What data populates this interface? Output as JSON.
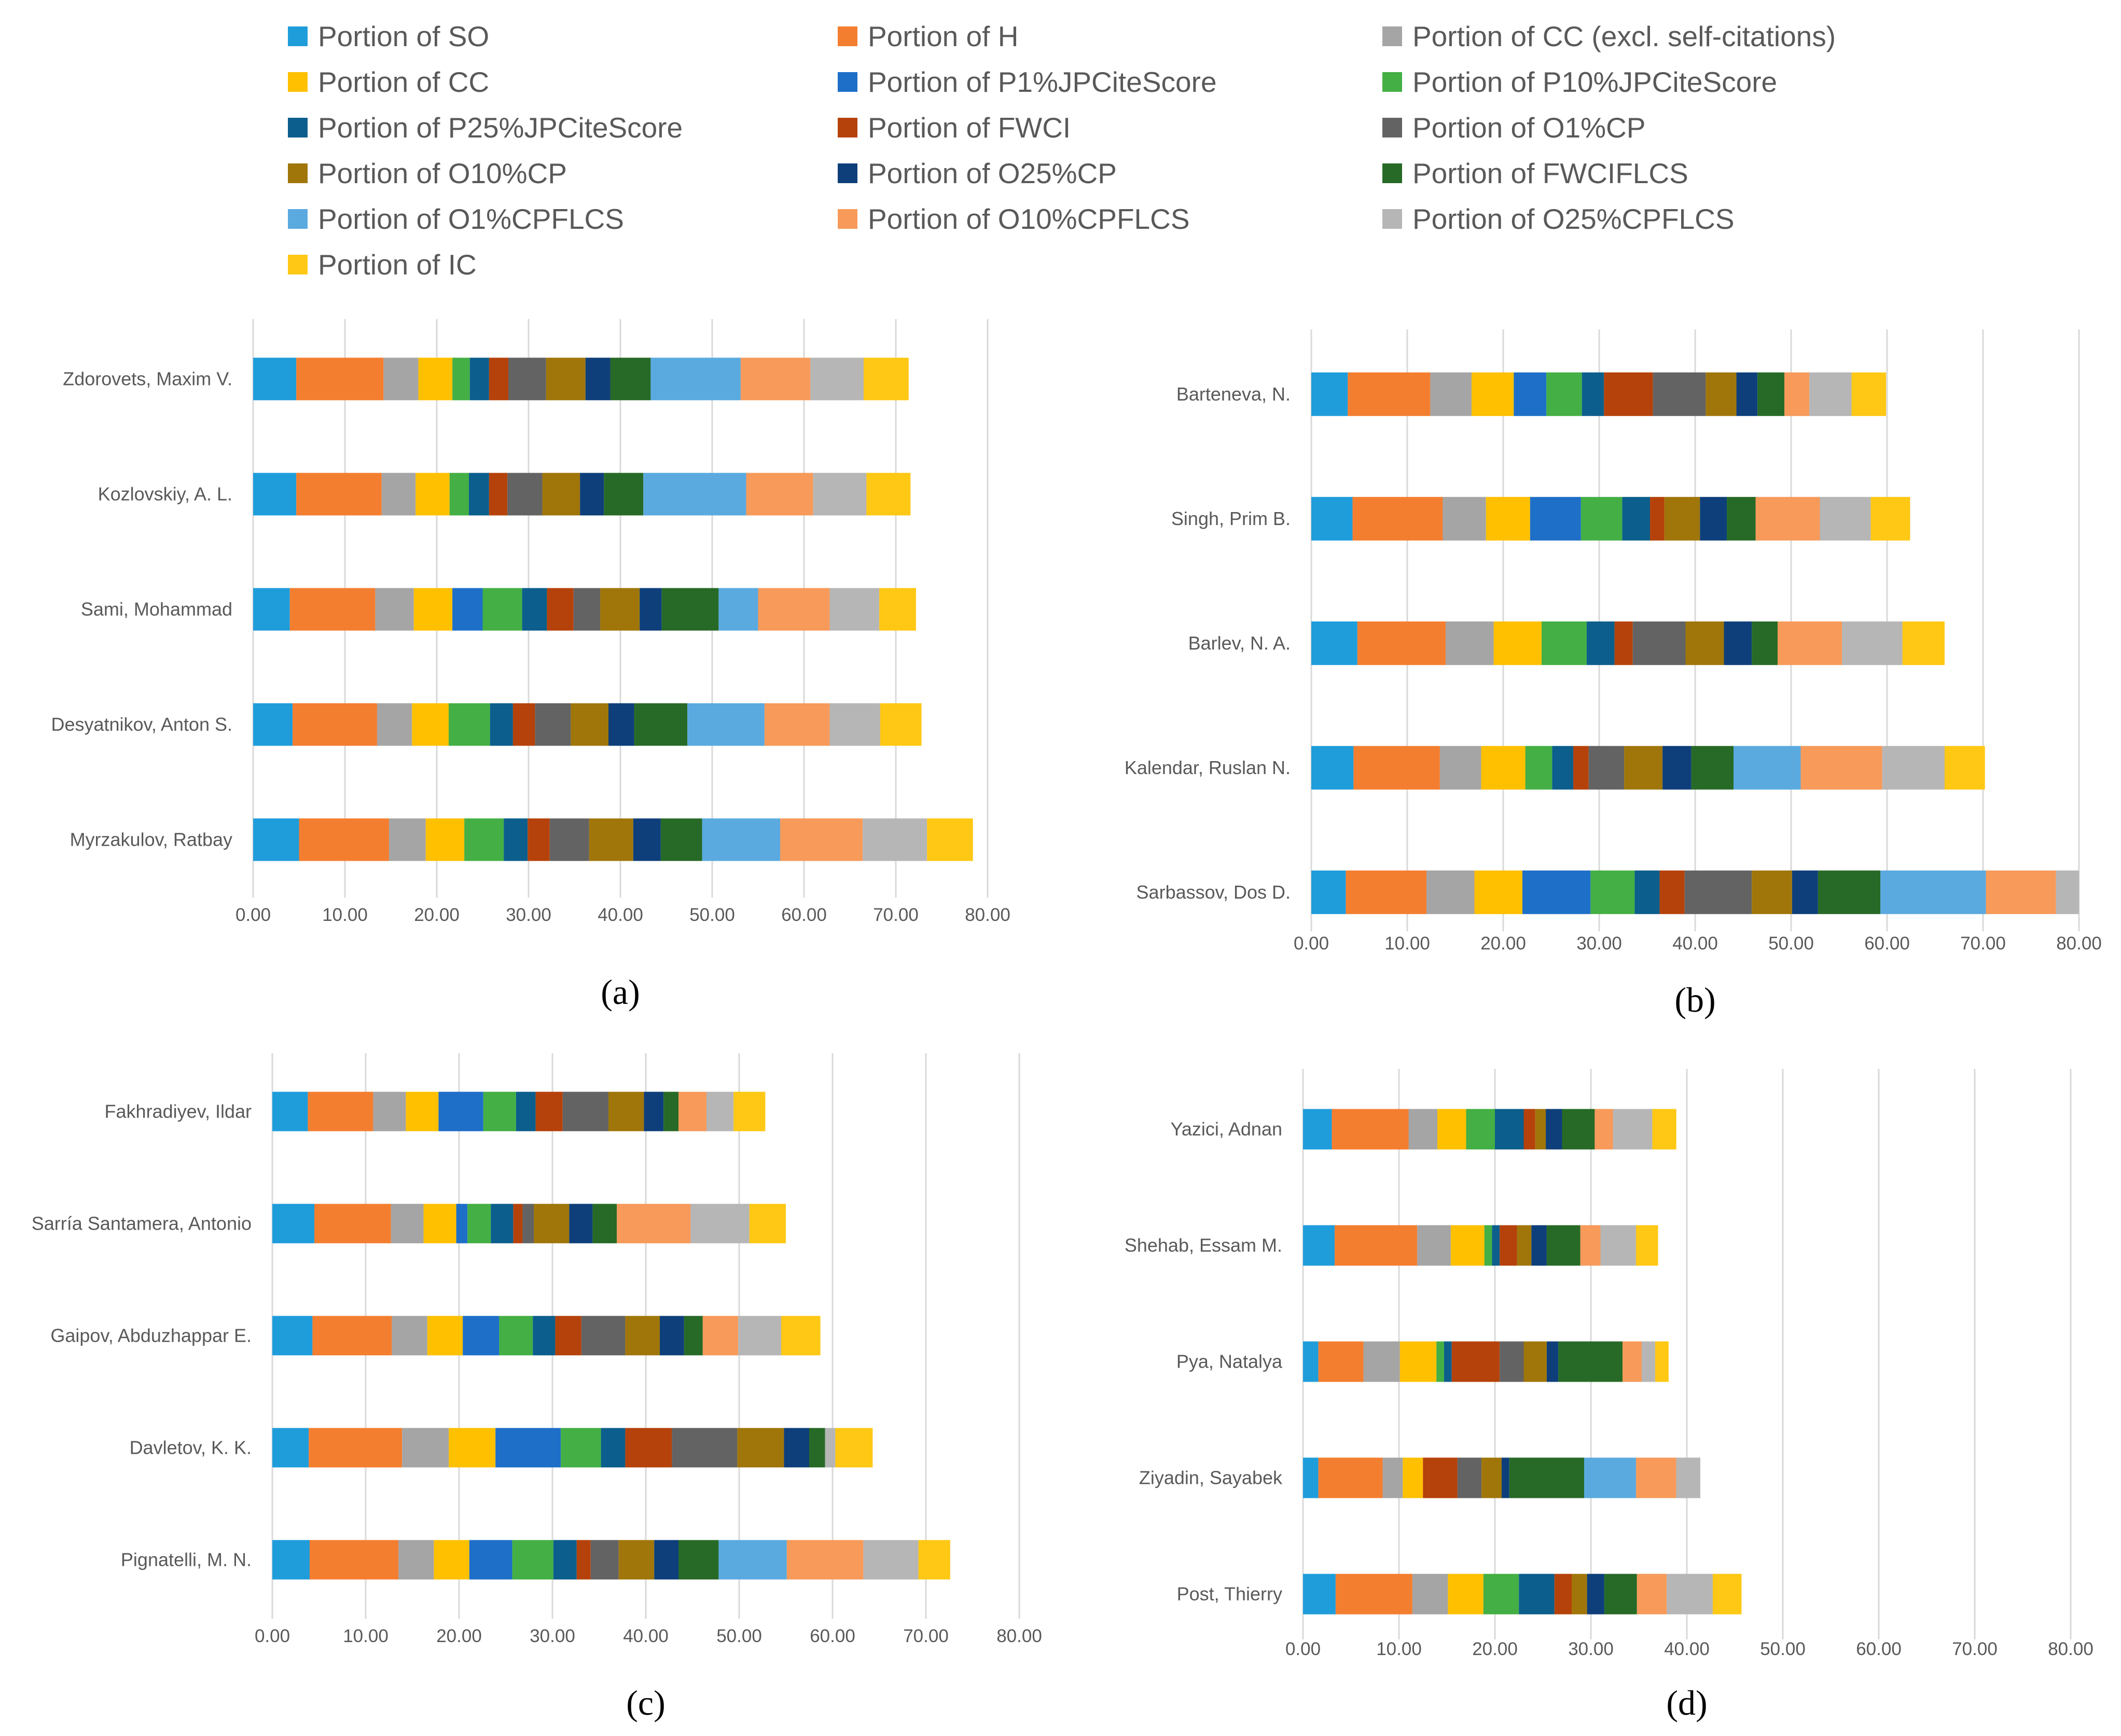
{
  "legend": {
    "items": [
      {
        "label": "Portion of SO",
        "color": "#1f9ddb"
      },
      {
        "label": "Portion of H",
        "color": "#f47e30"
      },
      {
        "label": "Portion of CC (excl. self-citations)",
        "color": "#a5a5a5"
      },
      {
        "label": "Portion of CC",
        "color": "#ffc000"
      },
      {
        "label": "Portion of P1%JPCiteScore",
        "color": "#1e6fc8"
      },
      {
        "label": "Portion of P10%JPCiteScore",
        "color": "#44af44"
      },
      {
        "label": "Portion of P25%JPCiteScore",
        "color": "#0c5e8c"
      },
      {
        "label": "Portion of FWCI",
        "color": "#b5420a"
      },
      {
        "label": "Portion of O1%CP",
        "color": "#636363"
      },
      {
        "label": "Portion of O10%CP",
        "color": "#a0760a"
      },
      {
        "label": "Portion of O25%CP",
        "color": "#0e3f7a"
      },
      {
        "label": "Portion of FWCIFLCS",
        "color": "#276a27"
      },
      {
        "label": "Portion of O1%CPFLCS",
        "color": "#5aaae0"
      },
      {
        "label": "Portion of O10%CPFLCS",
        "color": "#f79a5a"
      },
      {
        "label": "Portion of O25%CPFLCS",
        "color": "#b6b6b6"
      },
      {
        "label": "Portion of IC",
        "color": "#ffc814"
      }
    ]
  },
  "chart_data": [
    {
      "type": "bar",
      "orientation": "horizontal",
      "stacked": true,
      "panel_label": "(a)",
      "categories": [
        "Zdorovets, Maxim V.",
        "Kozlovskiy, A. L.",
        "Sami, Mohammad",
        "Desyatnikov, Anton S.",
        "Myrzakulov, Ratbay"
      ],
      "xlim": [
        0,
        80
      ],
      "x_ticks": [
        "0.00",
        "10.00",
        "20.00",
        "30.00",
        "40.00",
        "50.00",
        "60.00",
        "70.00",
        "80.00"
      ],
      "grid": true,
      "series": [
        {
          "name": "Portion of SO",
          "values": [
            4.7,
            4.7,
            4.0,
            4.3,
            5.0
          ]
        },
        {
          "name": "Portion of H",
          "values": [
            9.5,
            9.3,
            9.3,
            9.2,
            9.8
          ]
        },
        {
          "name": "Portion of CC (excl. self-citations)",
          "values": [
            3.8,
            3.7,
            4.2,
            3.8,
            4.0
          ]
        },
        {
          "name": "Portion of CC",
          "values": [
            3.7,
            3.7,
            4.2,
            4.0,
            4.2
          ]
        },
        {
          "name": "Portion of P1%JPCiteScore",
          "values": [
            0,
            0,
            3.3,
            0,
            0
          ]
        },
        {
          "name": "Portion of P10%JPCiteScore",
          "values": [
            1.9,
            2.1,
            4.3,
            4.5,
            4.3
          ]
        },
        {
          "name": "Portion of P25%JPCiteScore",
          "values": [
            2.1,
            2.2,
            2.7,
            2.5,
            2.6
          ]
        },
        {
          "name": "Portion of FWCI",
          "values": [
            2.1,
            2.0,
            2.9,
            2.4,
            2.4
          ]
        },
        {
          "name": "Portion of O1%CP",
          "values": [
            4.1,
            3.8,
            2.9,
            3.9,
            4.3
          ]
        },
        {
          "name": "Portion of O10%CP",
          "values": [
            4.3,
            4.1,
            4.3,
            4.1,
            4.8
          ]
        },
        {
          "name": "Portion of O25%CP",
          "values": [
            2.7,
            2.6,
            2.4,
            2.8,
            3.0
          ]
        },
        {
          "name": "Portion of FWCIFLCS",
          "values": [
            4.4,
            4.3,
            6.2,
            5.8,
            4.5
          ]
        },
        {
          "name": "Portion of O1%CPFLCS",
          "values": [
            9.8,
            11.2,
            4.3,
            8.4,
            8.5
          ]
        },
        {
          "name": "Portion of O10%CPFLCS",
          "values": [
            7.6,
            7.3,
            7.8,
            7.1,
            9.0
          ]
        },
        {
          "name": "Portion of O25%CPFLCS",
          "values": [
            5.8,
            5.8,
            5.4,
            5.5,
            7.0
          ]
        },
        {
          "name": "Portion of IC",
          "values": [
            4.9,
            4.8,
            4.0,
            4.5,
            5.0
          ]
        }
      ]
    },
    {
      "type": "bar",
      "orientation": "horizontal",
      "stacked": true,
      "panel_label": "(b)",
      "categories": [
        "Barteneva, N.",
        "Singh, Prim B.",
        "Barlev, N. A.",
        "Kalendar, Ruslan N.",
        "Sarbassov, Dos D."
      ],
      "xlim": [
        0,
        80
      ],
      "x_ticks": [
        "0.00",
        "10.00",
        "20.00",
        "30.00",
        "40.00",
        "50.00",
        "60.00",
        "70.00",
        "80.00"
      ],
      "grid": true,
      "series": [
        {
          "name": "Portion of SO",
          "values": [
            3.8,
            4.3,
            4.8,
            4.4,
            3.6
          ]
        },
        {
          "name": "Portion of H",
          "values": [
            8.6,
            9.4,
            9.2,
            9.0,
            8.4
          ]
        },
        {
          "name": "Portion of CC (excl. self-citations)",
          "values": [
            4.3,
            4.5,
            5.0,
            4.3,
            5.0
          ]
        },
        {
          "name": "Portion of CC",
          "values": [
            4.4,
            4.6,
            5.0,
            4.6,
            5.0
          ]
        },
        {
          "name": "Portion of P1%JPCiteScore",
          "values": [
            3.4,
            5.3,
            0,
            0,
            7.1
          ]
        },
        {
          "name": "Portion of P10%JPCiteScore",
          "values": [
            3.7,
            4.3,
            4.7,
            2.8,
            4.6
          ]
        },
        {
          "name": "Portion of P25%JPCiteScore",
          "values": [
            2.3,
            2.9,
            2.9,
            2.2,
            2.6
          ]
        },
        {
          "name": "Portion of FWCI",
          "values": [
            5.1,
            1.5,
            1.9,
            1.6,
            2.6
          ]
        },
        {
          "name": "Portion of O1%CP",
          "values": [
            5.5,
            0,
            5.5,
            3.7,
            7.0
          ]
        },
        {
          "name": "Portion of O10%CP",
          "values": [
            3.2,
            3.7,
            4.0,
            4.0,
            4.2
          ]
        },
        {
          "name": "Portion of O25%CP",
          "values": [
            2.2,
            2.8,
            2.9,
            3.0,
            2.7
          ]
        },
        {
          "name": "Portion of FWCIFLCS",
          "values": [
            2.8,
            3.0,
            2.7,
            4.4,
            6.5
          ]
        },
        {
          "name": "Portion of O1%CPFLCS",
          "values": [
            0,
            0,
            0,
            7.0,
            11.0
          ]
        },
        {
          "name": "Portion of O10%CPFLCS",
          "values": [
            2.6,
            6.7,
            6.7,
            8.5,
            7.3
          ]
        },
        {
          "name": "Portion of O25%CPFLCS",
          "values": [
            4.4,
            5.3,
            6.3,
            6.5,
            2.4
          ]
        },
        {
          "name": "Portion of IC",
          "values": [
            3.6,
            4.1,
            4.4,
            4.2,
            0
          ]
        }
      ]
    },
    {
      "type": "bar",
      "orientation": "horizontal",
      "stacked": true,
      "panel_label": "(c)",
      "categories": [
        "Fakhradiyev, Ildar",
        "Sarría Santamera, Antonio",
        "Gaipov, Abduzhappar E.",
        "Davletov, K. K.",
        "Pignatelli, M. N."
      ],
      "xlim": [
        0,
        80
      ],
      "x_ticks": [
        "0.00",
        "10.00",
        "20.00",
        "30.00",
        "40.00",
        "50.00",
        "60.00",
        "70.00",
        "80.00"
      ],
      "grid": true,
      "series": [
        {
          "name": "Portion of SO",
          "values": [
            3.8,
            4.5,
            4.3,
            3.9,
            4.0
          ]
        },
        {
          "name": "Portion of H",
          "values": [
            7.0,
            8.2,
            8.5,
            10.0,
            9.5
          ]
        },
        {
          "name": "Portion of CC (excl. self-citations)",
          "values": [
            3.5,
            3.5,
            3.8,
            5.0,
            3.8
          ]
        },
        {
          "name": "Portion of CC",
          "values": [
            3.5,
            3.5,
            3.8,
            5.0,
            3.8
          ]
        },
        {
          "name": "Portion of P1%JPCiteScore",
          "values": [
            4.8,
            1.2,
            3.9,
            7.0,
            4.6
          ]
        },
        {
          "name": "Portion of P10%JPCiteScore",
          "values": [
            3.5,
            2.5,
            3.6,
            4.3,
            4.4
          ]
        },
        {
          "name": "Portion of P25%JPCiteScore",
          "values": [
            2.1,
            2.4,
            2.4,
            2.6,
            2.5
          ]
        },
        {
          "name": "Portion of FWCI",
          "values": [
            2.9,
            1.0,
            2.8,
            5.0,
            1.5
          ]
        },
        {
          "name": "Portion of O1%CP",
          "values": [
            4.9,
            1.2,
            4.7,
            7.0,
            3.0
          ]
        },
        {
          "name": "Portion of O10%CP",
          "values": [
            3.8,
            3.8,
            3.7,
            5.0,
            3.8
          ]
        },
        {
          "name": "Portion of O25%CP",
          "values": [
            2.1,
            2.5,
            2.6,
            2.7,
            2.6
          ]
        },
        {
          "name": "Portion of FWCIFLCS",
          "values": [
            1.6,
            2.6,
            2.0,
            1.7,
            4.3
          ]
        },
        {
          "name": "Portion of O1%CPFLCS",
          "values": [
            0,
            0,
            0,
            0,
            7.3
          ]
        },
        {
          "name": "Portion of O10%CPFLCS",
          "values": [
            3.0,
            7.9,
            3.8,
            0,
            8.2
          ]
        },
        {
          "name": "Portion of O25%CPFLCS",
          "values": [
            2.9,
            6.3,
            4.6,
            1.1,
            5.9
          ]
        },
        {
          "name": "Portion of IC",
          "values": [
            3.4,
            3.9,
            4.2,
            4.0,
            3.4
          ]
        }
      ]
    },
    {
      "type": "bar",
      "orientation": "horizontal",
      "stacked": true,
      "panel_label": "(d)",
      "categories": [
        "Yazici, Adnan",
        "Shehab, Essam M.",
        "Pya, Natalya",
        "Ziyadin, Sayabek",
        "Post, Thierry"
      ],
      "xlim": [
        0,
        80
      ],
      "x_ticks": [
        "0.00",
        "10.00",
        "20.00",
        "30.00",
        "40.00",
        "50.00",
        "60.00",
        "70.00",
        "80.00"
      ],
      "grid": true,
      "series": [
        {
          "name": "Portion of SO",
          "values": [
            3.0,
            3.3,
            1.6,
            1.6,
            3.4
          ]
        },
        {
          "name": "Portion of H",
          "values": [
            8.0,
            8.6,
            4.7,
            6.7,
            8.0
          ]
        },
        {
          "name": "Portion of CC (excl. self-citations)",
          "values": [
            3.0,
            3.5,
            3.8,
            2.1,
            3.7
          ]
        },
        {
          "name": "Portion of CC",
          "values": [
            3.0,
            3.5,
            3.8,
            2.1,
            3.7
          ]
        },
        {
          "name": "Portion of P1%JPCiteScore",
          "values": [
            0,
            0,
            0,
            0,
            0
          ]
        },
        {
          "name": "Portion of P10%JPCiteScore",
          "values": [
            3.0,
            0.8,
            0.8,
            0,
            3.7
          ]
        },
        {
          "name": "Portion of P25%JPCiteScore",
          "values": [
            3.0,
            0.8,
            0.8,
            0,
            3.7
          ]
        },
        {
          "name": "Portion of FWCI",
          "values": [
            1.2,
            1.8,
            5.0,
            3.6,
            1.8
          ]
        },
        {
          "name": "Portion of O1%CP",
          "values": [
            0,
            0,
            2.5,
            2.5,
            0
          ]
        },
        {
          "name": "Portion of O10%CP",
          "values": [
            1.1,
            1.5,
            2.4,
            2.1,
            1.6
          ]
        },
        {
          "name": "Portion of O25%CP",
          "values": [
            1.7,
            1.6,
            1.2,
            0.8,
            1.8
          ]
        },
        {
          "name": "Portion of FWCIFLCS",
          "values": [
            3.4,
            3.5,
            6.7,
            7.8,
            3.4
          ]
        },
        {
          "name": "Portion of O1%CPFLCS",
          "values": [
            0,
            0,
            0,
            5.4,
            0
          ]
        },
        {
          "name": "Portion of O10%CPFLCS",
          "values": [
            1.9,
            2.1,
            2.0,
            4.2,
            3.1
          ]
        },
        {
          "name": "Portion of O25%CPFLCS",
          "values": [
            4.1,
            3.7,
            1.4,
            2.5,
            4.8
          ]
        },
        {
          "name": "Portion of IC",
          "values": [
            2.5,
            2.3,
            1.4,
            0,
            3.0
          ]
        }
      ]
    }
  ]
}
